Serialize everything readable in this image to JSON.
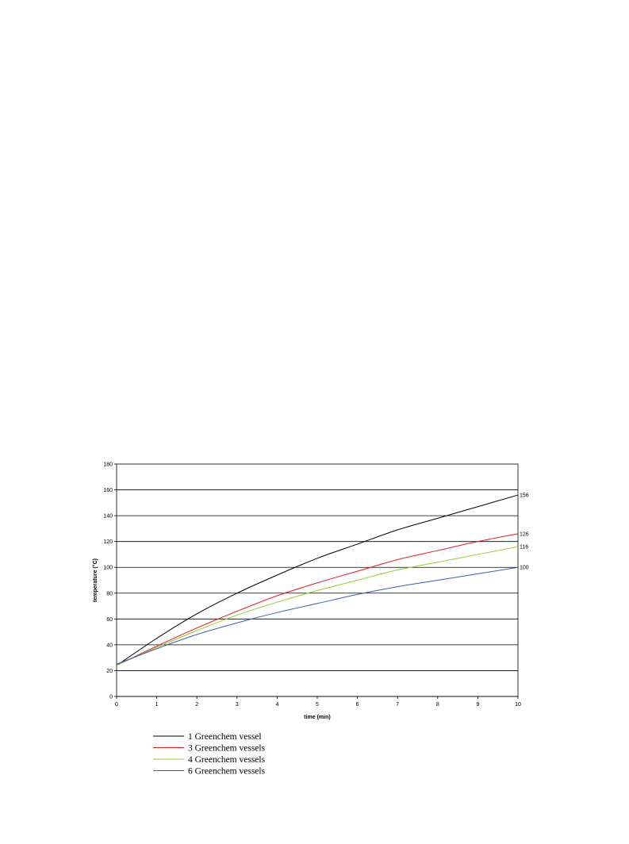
{
  "chart_data": {
    "type": "line",
    "title": "",
    "xlabel": "time (min)",
    "ylabel": "temperature (°C)",
    "xlim": [
      0,
      10
    ],
    "ylim": [
      0,
      180
    ],
    "x_ticks": [
      0,
      1,
      2,
      3,
      4,
      5,
      6,
      7,
      8,
      9,
      10
    ],
    "y_ticks": [
      0,
      20,
      40,
      60,
      80,
      100,
      120,
      140,
      160,
      180
    ],
    "grid": "horizontal",
    "legend_position": "bottom",
    "x": [
      0,
      1,
      2,
      3,
      4,
      5,
      6,
      7,
      8,
      9,
      10
    ],
    "series": [
      {
        "name": "1 Greenchem vessel",
        "color": "#000000",
        "end_label": "156",
        "values": [
          24,
          45,
          64,
          80,
          94,
          107,
          118,
          129,
          138,
          147,
          156
        ]
      },
      {
        "name": "3 Greenchem vessels",
        "color": "#e8191e",
        "end_label": "126",
        "values": [
          24,
          39,
          53,
          66,
          78,
          88,
          97,
          106,
          113,
          120,
          126
        ]
      },
      {
        "name": "4 Greenchem vessels",
        "color": "#9acd32",
        "end_label": "116",
        "values": [
          24,
          38,
          51,
          63,
          73,
          82,
          90,
          98,
          104,
          110,
          116
        ]
      },
      {
        "name": "6 Greenchem vessels",
        "color": "#3a5fb0",
        "end_label": "100",
        "values": [
          25,
          37,
          48,
          57,
          65,
          72,
          79,
          85,
          90,
          95,
          100
        ]
      }
    ]
  }
}
